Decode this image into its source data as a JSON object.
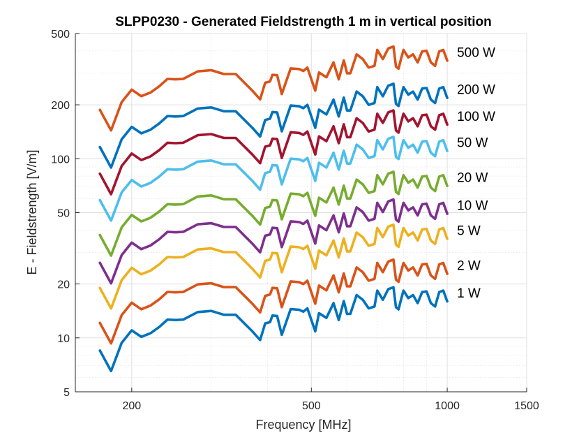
{
  "chart_data": {
    "type": "line",
    "title": "SLPP0230 - Generated Fieldstrength 1 m in vertical position",
    "xlabel": "Frequency [MHz]",
    "ylabel": "E - Fieldstrength [V/m]",
    "xscale": "log",
    "yscale": "log",
    "xlim": [
      150,
      1500
    ],
    "ylim": [
      5,
      500
    ],
    "xticks": [
      200,
      500,
      1000,
      1500
    ],
    "yticks": [
      5,
      10,
      20,
      50,
      100,
      200,
      500
    ],
    "grid": true,
    "legend": "series labels at right end of each line",
    "x": [
      170,
      180,
      190,
      200,
      210,
      220,
      230,
      240,
      250,
      260,
      280,
      300,
      320,
      340,
      370,
      385,
      395,
      405,
      410,
      420,
      430,
      450,
      470,
      480,
      490,
      500,
      510,
      520,
      540,
      560,
      575,
      590,
      600,
      610,
      630,
      650,
      670,
      690,
      700,
      720,
      740,
      760,
      770,
      780,
      790,
      800,
      820,
      840,
      860,
      880,
      900,
      920,
      940,
      960,
      980,
      1000
    ],
    "base_profile": [
      12.5,
      9.6,
      13.8,
      16.2,
      14.9,
      15.6,
      16.9,
      18.6,
      18.5,
      18.6,
      20.5,
      20.8,
      19.8,
      19.8,
      16.0,
      14.3,
      17.7,
      18.0,
      19.6,
      19.5,
      15.3,
      21.3,
      21.1,
      20.6,
      21.5,
      18.5,
      16.0,
      20.2,
      19.0,
      23.0,
      18.5,
      23.6,
      20.0,
      20.0,
      25.5,
      24.0,
      21.5,
      22.0,
      27.0,
      24.0,
      27.5,
      28.2,
      21.8,
      21.2,
      24.0,
      27.0,
      24.5,
      25.5,
      23.0,
      26.5,
      26.7,
      23.0,
      22.0,
      26.5,
      27.0,
      23.5
    ],
    "series": [
      {
        "name": "500 W",
        "color": "#d95319",
        "scale": 15.0
      },
      {
        "name": "200 W",
        "color": "#0072bd",
        "scale": 9.3
      },
      {
        "name": "100 W",
        "color": "#a2142f",
        "scale": 6.6
      },
      {
        "name": "50 W",
        "color": "#4dbeee",
        "scale": 4.7
      },
      {
        "name": "20 W",
        "color": "#77ac30",
        "scale": 3.0
      },
      {
        "name": "10 W",
        "color": "#7e2f8e",
        "scale": 2.1
      },
      {
        "name": "5 W",
        "color": "#edb120",
        "scale": 1.52
      },
      {
        "name": "2 W",
        "color": "#d95319",
        "scale": 0.97
      },
      {
        "name": "1 W",
        "color": "#0072bd",
        "scale": 0.68
      }
    ]
  }
}
